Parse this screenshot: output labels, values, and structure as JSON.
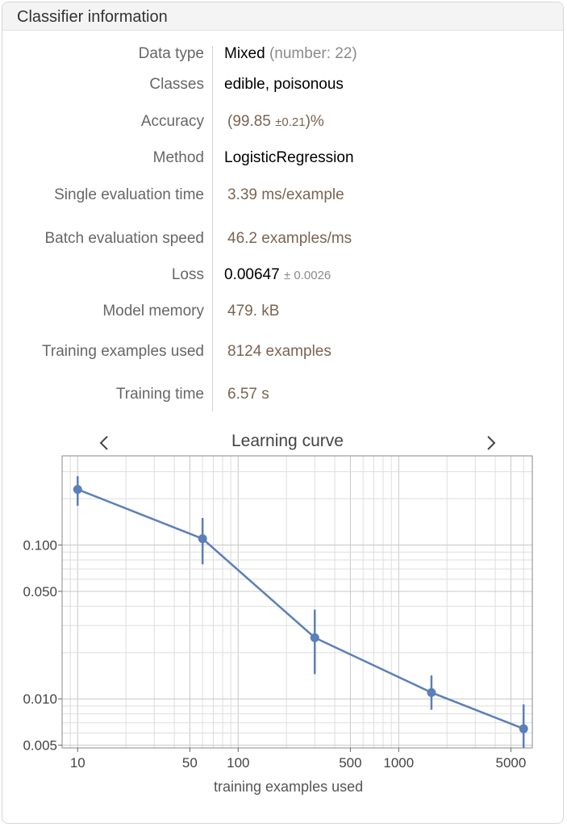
{
  "header": {
    "title": "Classifier information"
  },
  "rows": [
    {
      "label": "Data type",
      "value": "Mixed",
      "extra": "(number: 22)"
    },
    {
      "label": "Classes",
      "value": "edible, poisonous"
    },
    {
      "label": "Accuracy",
      "open": "(",
      "value": "99.85",
      "pm": "±0.21",
      "close": ")%"
    },
    {
      "label": "Method",
      "value": "LogisticRegression"
    },
    {
      "label": "Single evaluation time",
      "value": "3.39 ms/example"
    },
    {
      "label": "Batch evaluation speed",
      "value": "46.2 examples/ms"
    },
    {
      "label": "Loss",
      "value": "0.00647",
      "pm": "± 0.0026"
    },
    {
      "label": "Model memory",
      "value": "479. kB"
    },
    {
      "label": "Training examples used",
      "value": "8124 examples"
    },
    {
      "label": "Training time",
      "value": "6.57 s"
    }
  ],
  "chart": {
    "title": "Learning curve",
    "xlabel": "training examples used",
    "prev_icon": "chevron-left-icon",
    "next_icon": "chevron-right-icon"
  },
  "chart_data": {
    "type": "scatter",
    "title": "Learning curve",
    "xlabel": "training examples used",
    "ylabel": "",
    "xscale": "log",
    "yscale": "log",
    "xlim": [
      8,
      6800
    ],
    "ylim": [
      0.0048,
      0.38
    ],
    "xticks": [
      10,
      50,
      100,
      500,
      1000,
      5000
    ],
    "xtick_labels": [
      "10",
      "50",
      "100",
      "500",
      "1000",
      "5000"
    ],
    "yticks": [
      0.005,
      0.01,
      0.05,
      0.1
    ],
    "ytick_labels": [
      "0.005",
      "0.010",
      "0.050",
      "0.100"
    ],
    "grid": true,
    "color": "#5b7fb8",
    "series": [
      {
        "x": [
          10,
          60,
          300,
          1600,
          6000
        ],
        "y": [
          0.23,
          0.11,
          0.025,
          0.011,
          0.0064
        ],
        "ylow": [
          0.18,
          0.075,
          0.0145,
          0.0085,
          0.0048
        ],
        "yhigh": [
          0.28,
          0.15,
          0.038,
          0.0142,
          0.0092
        ]
      }
    ]
  }
}
